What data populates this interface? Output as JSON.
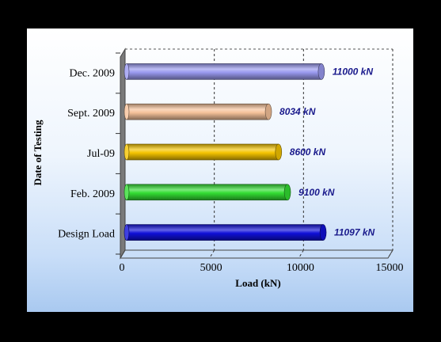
{
  "chart_data": {
    "type": "bar",
    "orientation": "horizontal",
    "categories": [
      "Design Load",
      "Feb. 2009",
      "Jul-09",
      "Sept. 2009",
      "Dec. 2009"
    ],
    "values": [
      11097,
      9100,
      8600,
      8034,
      11000
    ],
    "data_labels": [
      "11097 kN",
      "9100 kN",
      "8600 kN",
      "8034 kN",
      "11000 kN"
    ],
    "colors": [
      "#1010d8",
      "#33dd33",
      "#f5c400",
      "#f6c29a",
      "#9a9af0"
    ],
    "xlabel": "Load (kN)",
    "ylabel": "Date of Testing",
    "xlim": [
      0,
      15000
    ],
    "xticks": [
      0,
      5000,
      10000,
      15000
    ],
    "grid": "vertical-dashed",
    "legend": "none"
  }
}
